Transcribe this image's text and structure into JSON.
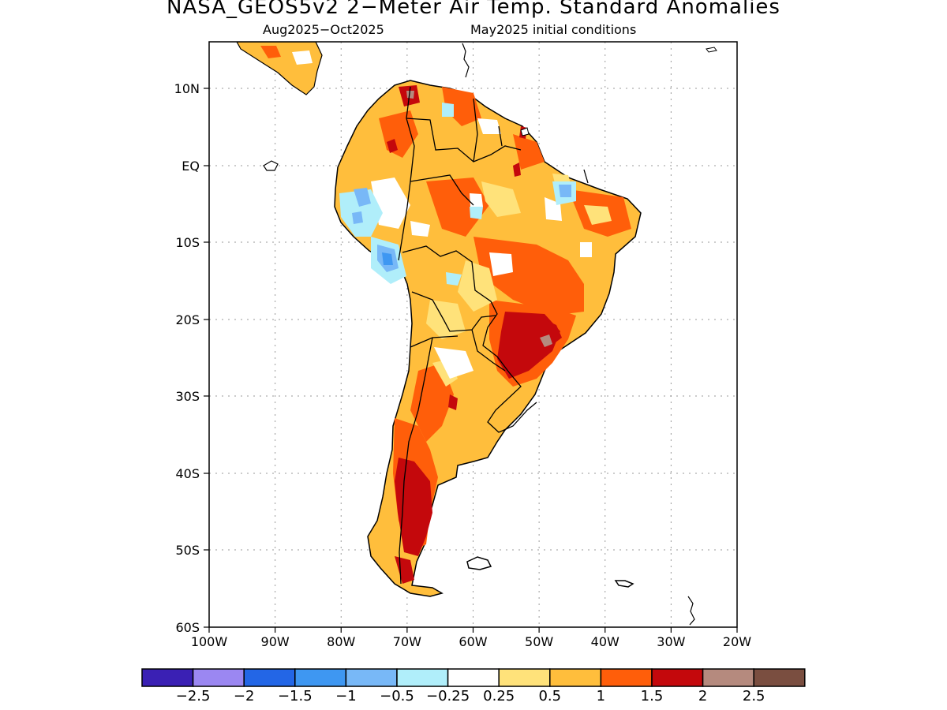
{
  "title": "NASA_GEOS5v2 2−Meter Air Temp. Standard Anomalies",
  "subtitle_period": "Aug2025−Oct2025",
  "subtitle_conditions": "May2025 initial conditions",
  "lat_labels": [
    "10N",
    "EQ",
    "10S",
    "20S",
    "30S",
    "40S",
    "50S",
    "60S"
  ],
  "lon_labels": [
    "100W",
    "90W",
    "80W",
    "70W",
    "60W",
    "50W",
    "40W",
    "30W",
    "20W"
  ],
  "colorbar": {
    "colors": [
      "#3a20b4",
      "#9b87f2",
      "#2366e6",
      "#3e97f2",
      "#78b8f7",
      "#b0eefa",
      "#ffffff",
      "#ffe27a",
      "#ffbe3c",
      "#ff5e0a",
      "#c4080c",
      "#b58a7e",
      "#7a4e40"
    ],
    "labels": [
      "−2.5",
      "−2",
      "−1.5",
      "−1",
      "−0.5",
      "−0.25",
      "0.25",
      "0.5",
      "1",
      "1.5",
      "2",
      "2.5"
    ]
  }
}
